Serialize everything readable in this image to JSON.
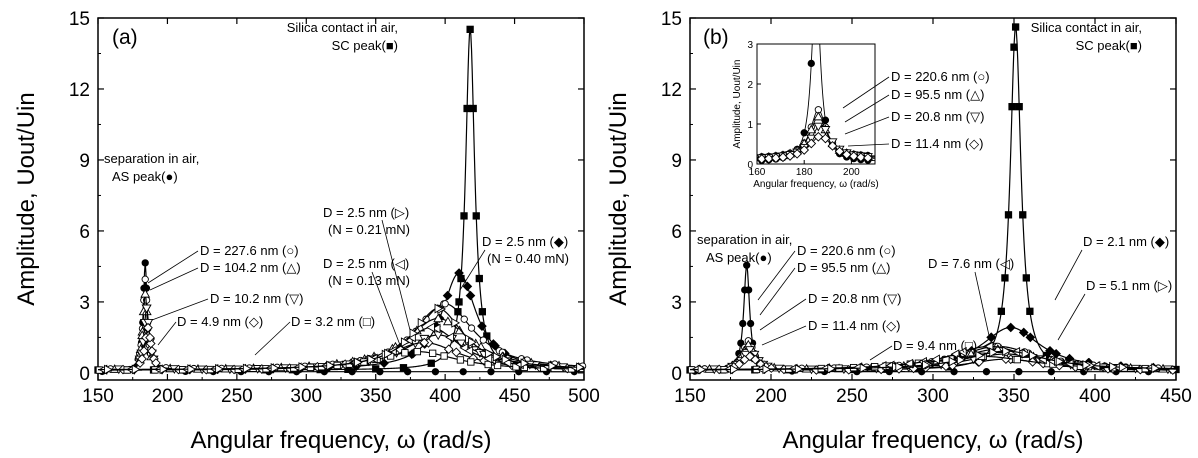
{
  "chart_data": [
    {
      "type": "line",
      "panel_label": "(a)",
      "xlabel": "Angular frequency, ω (rad/s)",
      "ylabel": "Amplitude, Uout/Uin",
      "xlim": [
        150,
        500
      ],
      "ylim": [
        -0.3,
        15
      ],
      "xticks": [
        "150",
        "200",
        "250",
        "300",
        "350",
        "400",
        "450",
        "500"
      ],
      "yticks": [
        "0",
        "3",
        "6",
        "9",
        "12",
        "15"
      ],
      "grid": false,
      "series": [
        {
          "peaks": [
            [
              418,
              14.4,
              4
            ]
          ],
          "base": 0.12,
          "marker": "square-filled"
        },
        {
          "peaks": [
            [
              184,
              4.6,
              1.6
            ]
          ],
          "base": 0.05,
          "marker": "circle-filled"
        },
        {
          "peaks": [
            [
              410,
              4.1,
              15
            ]
          ],
          "base": 0.12,
          "marker": "diamond-filled"
        },
        {
          "peaks": [
            [
              184,
              3.8,
              1.8
            ],
            [
              400,
              2.8,
              25
            ]
          ],
          "base": 0.12,
          "marker": "circle-open"
        },
        {
          "peaks": [
            [
              184,
              3.2,
              2.0
            ],
            [
              395,
              2.2,
              28
            ]
          ],
          "base": 0.1,
          "marker": "triangle-up-open"
        },
        {
          "peaks": [
            [
              185,
              2.6,
              2.3
            ],
            [
              395,
              1.5,
              30
            ]
          ],
          "base": 0.1,
          "marker": "triangle-down-open"
        },
        {
          "peaks": [
            [
              186,
              1.8,
              2.6
            ],
            [
              385,
              1.2,
              32
            ]
          ],
          "base": 0.08,
          "marker": "diamond-open"
        },
        {
          "peaks": [
            [
              380,
              0.8,
              35
            ]
          ],
          "base": 0.1,
          "marker": "square-open"
        },
        {
          "peaks": [
            [
              390,
              1.8,
              25
            ]
          ],
          "base": 0.12,
          "marker": "triangle-left-open"
        },
        {
          "peaks": [
            [
              395,
              2.6,
              22
            ]
          ],
          "base": 0.12,
          "marker": "triangle-right-open"
        }
      ],
      "annotations": {
        "sc": [
          "Silica contact in air,",
          "SC peak(■)"
        ],
        "as": [
          "separation in air,",
          "AS peak(●)"
        ],
        "d1": "D = 227.6 nm (○)",
        "d2": "D = 104.2 nm (△)",
        "d3": "D = 10.2 nm (▽)",
        "d4": "D = 4.9 nm (◇)",
        "d5": "D = 3.2 nm (□)",
        "d6": "D = 2.5 nm (▷)",
        "d6n": "(N = 0.21 mN)",
        "d7": "D = 2.5 nm (◁)",
        "d7n": "(N = 0.13 mN)",
        "d8": "D = 2.5 nm (◆)",
        "d8n": "(N = 0.40 mN)"
      }
    },
    {
      "type": "line",
      "panel_label": "(b)",
      "xlabel": "Angular frequency, ω (rad/s)",
      "ylabel": "Amplitude, Uout/Uin",
      "xlim": [
        150,
        450
      ],
      "ylim": [
        -0.3,
        15
      ],
      "xticks": [
        "150",
        "200",
        "250",
        "300",
        "350",
        "400",
        "450"
      ],
      "yticks": [
        "0",
        "3",
        "6",
        "9",
        "12",
        "15"
      ],
      "grid": false,
      "series": [
        {
          "peaks": [
            [
              351,
              14.5,
              4
            ]
          ],
          "base": 0.12,
          "marker": "square-filled"
        },
        {
          "peaks": [
            [
              185,
              4.5,
              2.2
            ]
          ],
          "base": 0.05,
          "marker": "circle-filled"
        },
        {
          "peaks": [
            [
              348,
              1.8,
              22
            ]
          ],
          "base": 0.12,
          "marker": "diamond-filled"
        },
        {
          "peaks": [
            [
              186,
              1.2,
              4
            ],
            [
              340,
              1.0,
              30
            ]
          ],
          "base": 0.12,
          "marker": "circle-open"
        },
        {
          "peaks": [
            [
              186,
              1.05,
              4.5
            ],
            [
              340,
              0.9,
              30
            ]
          ],
          "base": 0.1,
          "marker": "triangle-up-open"
        },
        {
          "peaks": [
            [
              187,
              0.85,
              5
            ],
            [
              345,
              0.7,
              30
            ]
          ],
          "base": 0.1,
          "marker": "triangle-down-open"
        },
        {
          "peaks": [
            [
              187,
              0.6,
              6
            ],
            [
              345,
              0.5,
              30
            ]
          ],
          "base": 0.08,
          "marker": "diamond-open"
        },
        {
          "peaks": [
            [
              330,
              0.6,
              40
            ]
          ],
          "base": 0.1,
          "marker": "square-open"
        },
        {
          "peaks": [
            [
              335,
              1.0,
              30
            ]
          ],
          "base": 0.12,
          "marker": "triangle-left-open"
        },
        {
          "peaks": [
            [
              345,
              0.8,
              30
            ]
          ],
          "base": 0.12,
          "marker": "triangle-right-open"
        }
      ],
      "annotations": {
        "sc": [
          "Silica contact in air,",
          "SC peak(■)"
        ],
        "as": [
          "separation in air,",
          "AS peak(●)"
        ],
        "d1": "D = 220.6 nm (○)",
        "d2": "D = 95.5 nm (△)",
        "d3": "D = 20.8 nm (▽)",
        "d4": "D = 11.4 nm (◇)",
        "d5": "D = 9.4 nm (□)",
        "d6": "D = 7.6 nm (◁)",
        "d7": "D = 2.1 nm (◆)",
        "d8": "D = 5.1 nm (▷)"
      },
      "inset": {
        "xlabel": "Angular frequency, ω (rad/s)",
        "ylabel": "Amplitude, Uout/Uin",
        "xlim": [
          160,
          210
        ],
        "ylim": [
          0,
          3
        ],
        "xticks": [
          "160",
          "180",
          "200"
        ],
        "yticks": [
          "0",
          "1",
          "2",
          "3"
        ],
        "labels": [
          "D = 220.6 nm (○)",
          "D = 95.5 nm (△)",
          "D = 20.8 nm (▽)",
          "D = 11.4 nm (◇)"
        ]
      }
    }
  ]
}
